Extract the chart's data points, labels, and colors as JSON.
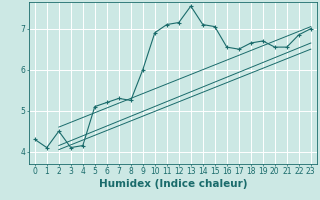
{
  "xlabel": "Humidex (Indice chaleur)",
  "background_color": "#cce8e4",
  "line_color": "#1a6b6b",
  "grid_color": "#ffffff",
  "xlim": [
    -0.5,
    23.5
  ],
  "ylim": [
    3.7,
    7.65
  ],
  "yticks": [
    4,
    5,
    6,
    7
  ],
  "xticks": [
    0,
    1,
    2,
    3,
    4,
    5,
    6,
    7,
    8,
    9,
    10,
    11,
    12,
    13,
    14,
    15,
    16,
    17,
    18,
    19,
    20,
    21,
    22,
    23
  ],
  "main_x": [
    0,
    1,
    2,
    3,
    4,
    5,
    6,
    7,
    8,
    9,
    10,
    11,
    12,
    13,
    14,
    15,
    16,
    17,
    18,
    19,
    20,
    21,
    22,
    23
  ],
  "main_y": [
    4.3,
    4.1,
    4.5,
    4.1,
    4.15,
    5.1,
    5.2,
    5.3,
    5.25,
    6.0,
    6.9,
    7.1,
    7.15,
    7.55,
    7.1,
    7.05,
    6.55,
    6.5,
    6.65,
    6.7,
    6.55,
    6.55,
    6.85,
    7.0
  ],
  "trend_lines": [
    {
      "x": [
        2,
        23
      ],
      "y": [
        4.6,
        7.05
      ]
    },
    {
      "x": [
        2,
        23
      ],
      "y": [
        4.15,
        6.65
      ]
    },
    {
      "x": [
        2,
        23
      ],
      "y": [
        4.05,
        6.5
      ]
    }
  ],
  "tick_fontsize": 5.5,
  "label_fontsize": 7.5
}
